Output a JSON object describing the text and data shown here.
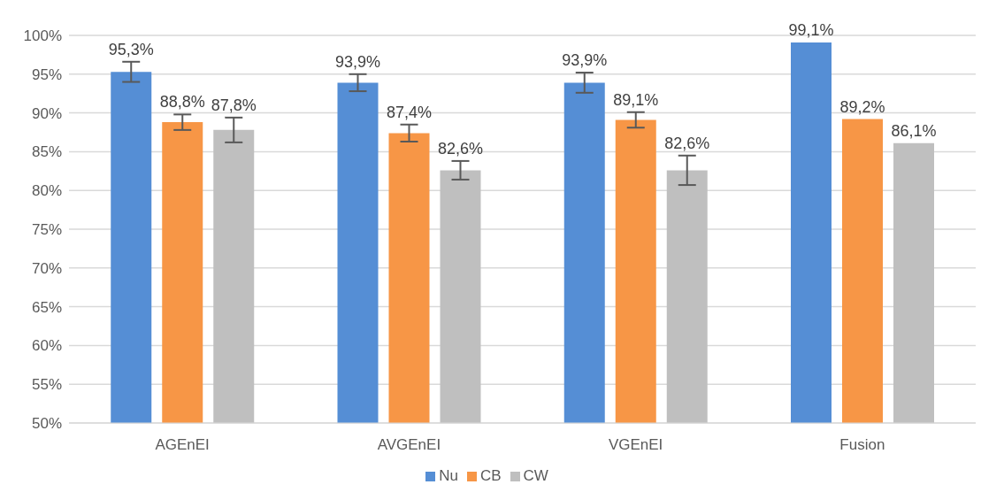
{
  "chart_data": {
    "type": "bar",
    "categories": [
      "AGEnEI",
      "AVGEnEI",
      "VGEnEI",
      "Fusion"
    ],
    "series": [
      {
        "name": "Nu",
        "color": "#558ed5",
        "values": [
          95.3,
          93.9,
          93.9,
          99.1
        ],
        "errors": [
          1.3,
          1.1,
          1.3,
          null
        ],
        "value_labels": [
          "95,3%",
          "93,9%",
          "93,9%",
          "99,1%"
        ]
      },
      {
        "name": "CB",
        "color": "#f79646",
        "values": [
          88.8,
          87.4,
          89.1,
          89.2
        ],
        "errors": [
          1.0,
          1.1,
          1.0,
          null
        ],
        "value_labels": [
          "88,8%",
          "87,4%",
          "89,1%",
          "89,2%"
        ]
      },
      {
        "name": "CW",
        "color": "#bfbfbf",
        "values": [
          87.8,
          82.6,
          82.6,
          86.1
        ],
        "errors": [
          1.6,
          1.2,
          1.9,
          null
        ],
        "value_labels": [
          "87,8%",
          "82,6%",
          "82,6%",
          "86,1%"
        ]
      }
    ],
    "ylim": [
      50,
      100
    ],
    "yticks": [
      {
        "value": 50,
        "label": "50%"
      },
      {
        "value": 55,
        "label": "55%"
      },
      {
        "value": 60,
        "label": "60%"
      },
      {
        "value": 65,
        "label": "65%"
      },
      {
        "value": 70,
        "label": "70%"
      },
      {
        "value": 75,
        "label": "75%"
      },
      {
        "value": 80,
        "label": "80%"
      },
      {
        "value": 85,
        "label": "85%"
      },
      {
        "value": 90,
        "label": "90%"
      },
      {
        "value": 95,
        "label": "95%"
      },
      {
        "value": 100,
        "label": "100%"
      }
    ],
    "grid": "y",
    "legend": "bottom"
  }
}
